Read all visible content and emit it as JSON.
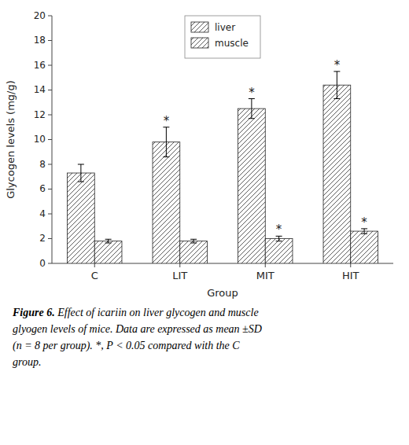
{
  "chart_data": {
    "type": "bar",
    "categories": [
      "C",
      "LIT",
      "MIT",
      "HIT"
    ],
    "series": [
      {
        "name": "liver",
        "color": "white",
        "values": [
          7.3,
          9.8,
          12.5,
          14.4
        ],
        "errors": [
          0.7,
          1.2,
          0.8,
          1.1
        ],
        "significance": [
          null,
          "*",
          "*",
          "*"
        ]
      },
      {
        "name": "muscle",
        "color": "white",
        "values": [
          1.8,
          1.8,
          2.0,
          2.6
        ],
        "errors": [
          0.15,
          0.15,
          0.2,
          0.2
        ],
        "significance": [
          null,
          null,
          "*",
          "*"
        ]
      }
    ],
    "ylabel": "Glycogen levels (mg/g)",
    "xlabel": "Group",
    "ylim": [
      0,
      20
    ],
    "yticks": [
      0,
      2,
      4,
      6,
      8,
      10,
      12,
      14,
      16,
      18,
      20
    ],
    "grid": false,
    "legend": "upper center",
    "caption_label": "Figure 6.",
    "caption": [
      " Effect of icariin on liver glycogen and muscle",
      "glyogen levels of mice. Data are expressed as mean ±SD",
      "(n = 8 per group). *, P < 0.05 compared with the C",
      "group."
    ]
  }
}
